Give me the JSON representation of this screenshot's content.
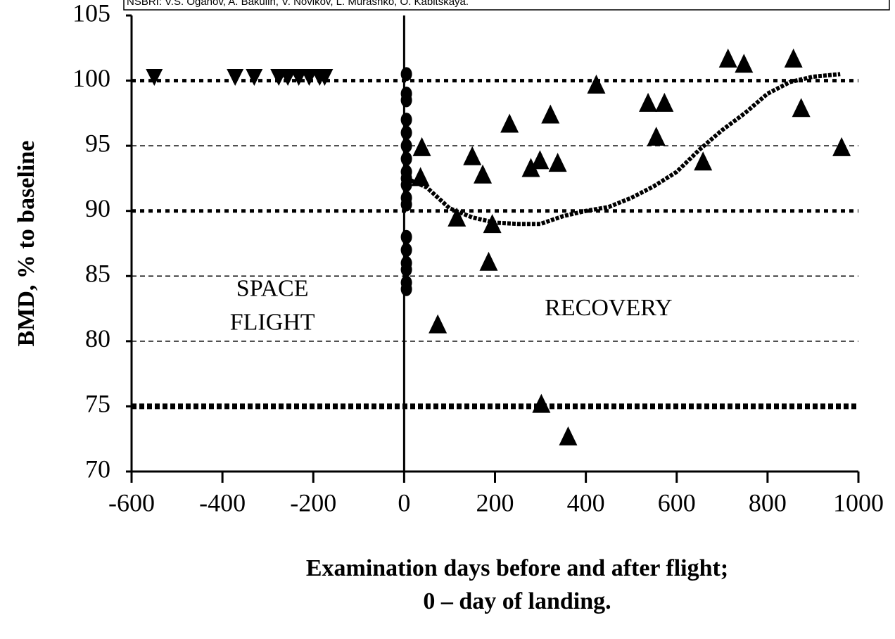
{
  "chart_data": {
    "type": "scatter",
    "header": "NSBRI: V.S. Oganov, A. Bakulin, V. Novikov, L. Murashko, O. Kabitskaya.",
    "ylabel": "BMD, % to baseline",
    "xlabel_lines": [
      "Examination days before and after flight;",
      "0 – day of landing."
    ],
    "annotations": [
      {
        "lines": [
          "SPACE",
          "FLIGHT"
        ],
        "x": -290,
        "y": 82.6
      },
      {
        "lines": [
          "RECOVERY"
        ],
        "x": 450,
        "y": 82.4
      }
    ],
    "xlim": [
      -600,
      1000
    ],
    "xticks": [
      -600,
      -400,
      -200,
      0,
      200,
      400,
      600,
      800,
      1000
    ],
    "ylim": [
      70,
      105
    ],
    "yticks": [
      70,
      75,
      80,
      85,
      90,
      95,
      100,
      105
    ],
    "reference_lines": [
      {
        "y": 100,
        "style": "dotted-thick"
      },
      {
        "y": 95,
        "style": "dashed"
      },
      {
        "y": 90,
        "style": "dotted-thick"
      },
      {
        "y": 85,
        "style": "dashed"
      },
      {
        "y": 80,
        "style": "dashed"
      },
      {
        "y": 75,
        "style": "square-thick"
      }
    ],
    "vline": 0,
    "color": "#000000",
    "series": [
      {
        "marker": "triangle-down",
        "x": [
          -550,
          -372,
          -330,
          -276,
          -256,
          -232,
          -209,
          -186,
          -175
        ],
        "values": [
          100.3,
          100.3,
          100.3,
          100.3,
          100.3,
          100.3,
          100.3,
          100.3,
          100.3
        ]
      },
      {
        "marker": "circle",
        "x": [
          5,
          5,
          5,
          5,
          5,
          5,
          5,
          5,
          5,
          5,
          5,
          5,
          5,
          5,
          5,
          5,
          5,
          5
        ],
        "values": [
          100.5,
          99,
          98.5,
          97,
          96,
          95,
          94,
          93,
          92.5,
          92,
          91,
          90.5,
          88,
          87,
          86,
          85.5,
          84.5,
          84
        ]
      },
      {
        "marker": "triangle-up",
        "x": [
          39,
          36,
          74,
          116,
          150,
          173,
          186,
          194,
          232,
          279,
          299,
          322,
          338,
          302,
          361,
          423,
          537,
          555,
          573,
          658,
          713,
          748,
          857,
          874,
          963
        ],
        "values": [
          94.8,
          92.5,
          81.2,
          89.4,
          94.1,
          92.7,
          86.0,
          88.9,
          96.6,
          93.2,
          93.8,
          97.3,
          93.6,
          75.1,
          72.6,
          99.6,
          98.2,
          95.6,
          98.2,
          93.7,
          101.6,
          101.2,
          101.6,
          97.8,
          94.8
        ]
      },
      {
        "marker": "line",
        "x": [
          5,
          50,
          100,
          150,
          200,
          250,
          300,
          350,
          400,
          450,
          500,
          550,
          600,
          650,
          700,
          750,
          800,
          850,
          900,
          960
        ],
        "values": [
          92.5,
          91.8,
          90.2,
          89.5,
          89.1,
          89,
          89,
          89.6,
          90,
          90.3,
          91,
          91.9,
          93,
          94.7,
          96.2,
          97.5,
          99,
          99.9,
          100.3,
          100.5
        ]
      }
    ]
  }
}
